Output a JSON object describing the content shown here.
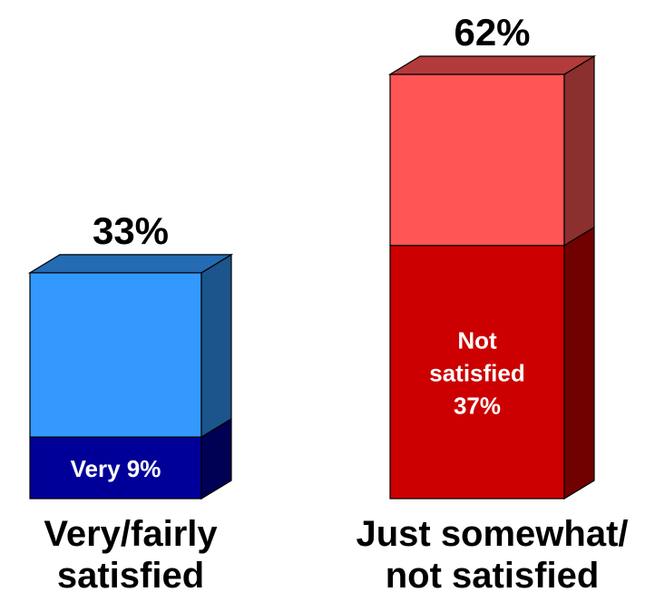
{
  "chart_data": {
    "type": "bar",
    "stacked": true,
    "three_d": true,
    "categories": [
      "Very/fairly satisfied",
      "Just somewhat/ not satisfied"
    ],
    "category_lines": [
      [
        "Very/fairly",
        "satisfied"
      ],
      [
        "Just somewhat/",
        "not satisfied"
      ]
    ],
    "totals": [
      33,
      62
    ],
    "total_labels": [
      "33%",
      "62%"
    ],
    "segments": [
      [
        {
          "value": 9,
          "label_lines": [
            "Very  9%"
          ],
          "color": "#000099"
        },
        {
          "value": 24,
          "label_lines": [],
          "color": "#3399ff"
        }
      ],
      [
        {
          "value": 37,
          "label_lines": [
            "Not",
            "satisfied",
            "37%"
          ],
          "color": "#cc0000"
        },
        {
          "value": 25,
          "label_lines": [],
          "color": "#ff5555"
        }
      ]
    ],
    "ylim": [
      0,
      62
    ],
    "grid": false,
    "legend": "none"
  }
}
